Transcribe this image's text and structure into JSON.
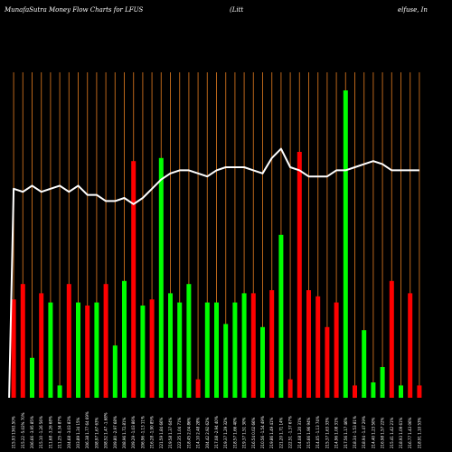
{
  "chart_data": {
    "type": "bar",
    "title_left": "MunafaSutra  Money Flow  Charts for LFUS",
    "title_mid": "(Litt",
    "title_right": "elfuse,  In",
    "colors": {
      "background": "#000000",
      "up": "#00ff00",
      "down": "#ff0000",
      "grid": "#b8651a",
      "line": "#ffffff"
    },
    "grid": true,
    "ylim": [
      0,
      100
    ],
    "categories": [
      "215.93 1363.50%",
      "215.22 -5.02% 70%",
      "206.66 -3.95 85%",
      "215.10 -1.26 56%",
      "211.68 -3.26 68%",
      "211.25 -0.34 87%",
      "204.68 -3.03 83%",
      "203.89 1.34 15%",
      "206.38 1.77 64 69%",
      "208.97 1.67 63%",
      "208.52 1.47 -1.68%",
      "209.80 -2.97 68%",
      "208.96 1.72.81%",
      "209.29 -1.03 86%",
      "206.96 -1.13 11%",
      "216.28 -1.90 85%",
      "221.59 1.84 66%",
      "219.58 1.37 64%",
      "222.35 1.04 71%",
      "218.45 2.04 86%",
      "214.10 2.48 28%",
      "204.42 2.92 62%",
      "217.08 -2.94 40%",
      "219.37 1.29 32%",
      "218.57 1.66 40%",
      "219.37 1.51 30%",
      "216.54 0.02 66%",
      "210.56 -1.54 49%",
      "219.86 1.49 41%",
      "221.20 1.71 14%",
      "222.51 -1.37 67%",
      "214.08 1.20 31%",
      "215.66 1.96 94%",
      "214.05 -1.13 74%",
      "215.37 1.63 33%",
      "214.96 1.08 31%",
      "217.56 1.17 46%",
      "218.34 -1.53 81%",
      "218.94 -1.47 29%",
      "214.40 1.23 50%",
      "216.98 1.57 22%",
      "215.41 1.42 21%",
      "218.93 1.09 61%",
      "216.77 1.43 06%",
      "218.91 1.10 53%"
    ],
    "series": [
      {
        "type": "bar",
        "values": [
          32,
          37,
          13,
          34,
          31,
          4,
          37,
          31,
          30,
          31,
          37,
          17,
          38,
          77,
          30,
          32,
          78,
          34,
          31,
          37,
          6,
          31,
          31,
          24,
          31,
          34,
          34,
          23,
          35,
          53,
          6,
          80,
          35,
          33,
          23,
          31,
          100,
          4,
          22,
          5,
          10,
          38,
          4,
          34,
          4
        ],
        "directions": [
          "down",
          "down",
          "up",
          "down",
          "up",
          "up",
          "down",
          "up",
          "down",
          "up",
          "down",
          "up",
          "up",
          "down",
          "up",
          "down",
          "up",
          "up",
          "up",
          "up",
          "down",
          "up",
          "up",
          "up",
          "up",
          "up",
          "down",
          "up",
          "down",
          "up",
          "down",
          "down",
          "down",
          "down",
          "down",
          "down",
          "up",
          "down",
          "up",
          "up",
          "up",
          "down",
          "up",
          "down",
          "down"
        ]
      },
      {
        "type": "line",
        "values": [
          68,
          67,
          69,
          67,
          68,
          69,
          67,
          69,
          66,
          66,
          64,
          64,
          65,
          63,
          65,
          68,
          71,
          73,
          74,
          74,
          73,
          72,
          74,
          75,
          75,
          75,
          74,
          73,
          78,
          81,
          75,
          74,
          72,
          72,
          72,
          74,
          74,
          75,
          76,
          77,
          76,
          74,
          74,
          74,
          74
        ]
      }
    ]
  }
}
